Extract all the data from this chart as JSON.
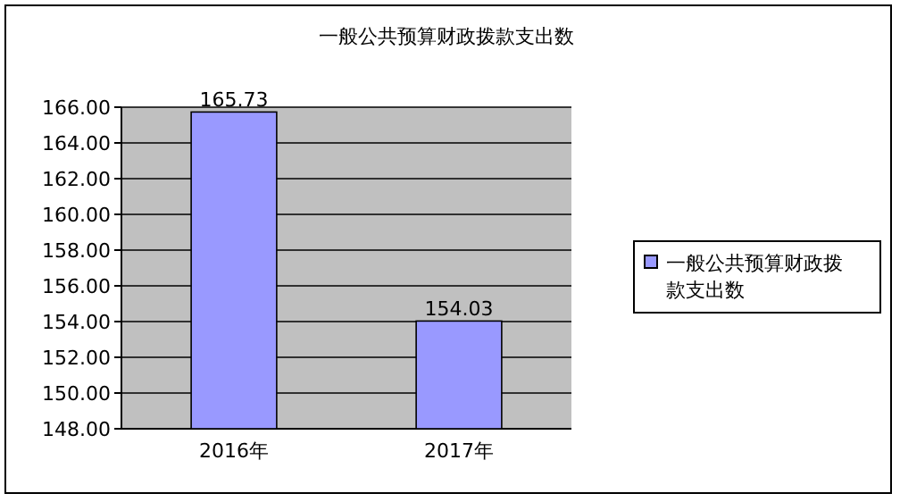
{
  "chart_data": {
    "type": "bar",
    "title": "一般公共预算财政拨款支出数",
    "categories": [
      "2016年",
      "2017年"
    ],
    "series": [
      {
        "name": "一般公共预算财政拨款支出数",
        "color": "#9999ff",
        "values": [
          165.73,
          154.03
        ]
      }
    ],
    "ylim": [
      148,
      166
    ],
    "yticks": [
      {
        "value": 148,
        "label": "148.00"
      },
      {
        "value": 150,
        "label": "150.00"
      },
      {
        "value": 152,
        "label": "152.00"
      },
      {
        "value": 154,
        "label": "154.00"
      },
      {
        "value": 156,
        "label": "156.00"
      },
      {
        "value": 158,
        "label": "158.00"
      },
      {
        "value": 160,
        "label": "160.00"
      },
      {
        "value": 162,
        "label": "162.00"
      },
      {
        "value": 164,
        "label": "164.00"
      },
      {
        "value": 166,
        "label": "166.00"
      }
    ],
    "grid": "y",
    "legend": "right",
    "data_labels": true
  }
}
